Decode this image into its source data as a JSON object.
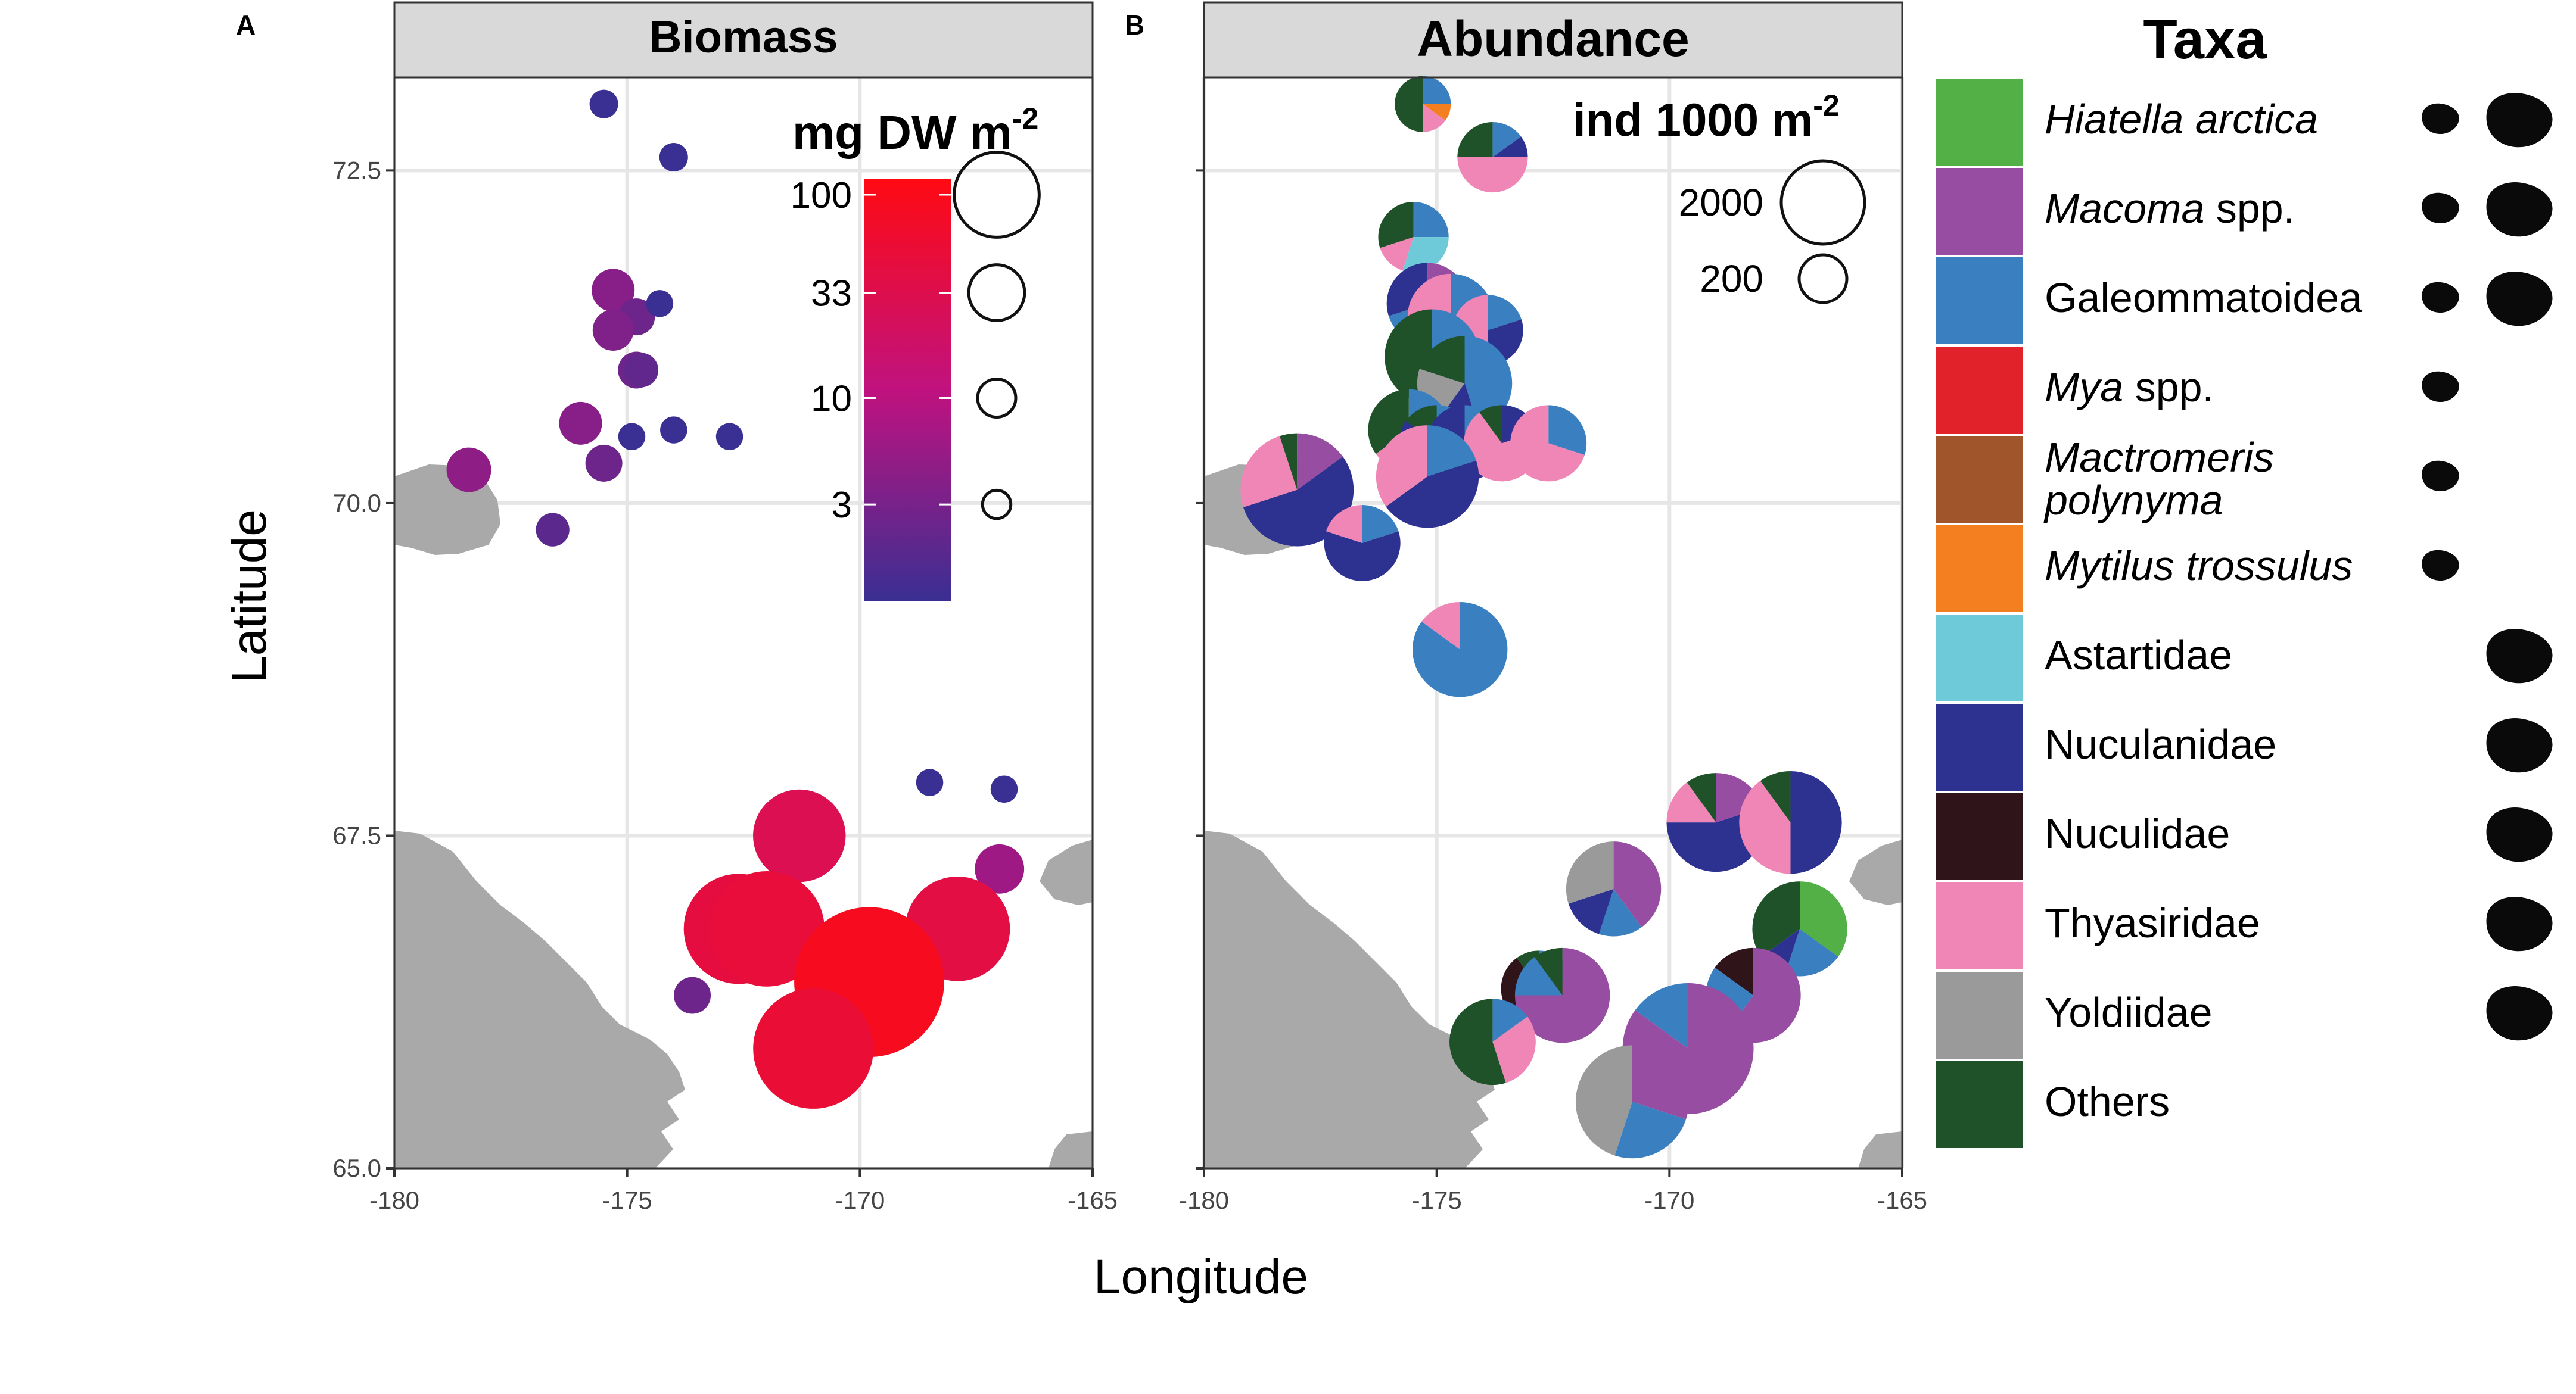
{
  "figure": {
    "axis_x_label": "Longitude",
    "axis_y_label": "Latitude",
    "x_ticks": [
      "-180",
      "-175",
      "-170",
      "-165"
    ],
    "y_ticks": [
      "65.0",
      "67.5",
      "70.0",
      "72.5"
    ]
  },
  "colors": {
    "land": "#a9a9a9",
    "grid": "#e6e6e6",
    "strip": "#d9d9d9",
    "gradient_low": "#3a2f93",
    "gradient_mid": "#c0127f",
    "gradient_high": "#ff0a12"
  },
  "chart_data": [
    {
      "type": "scatter",
      "panel_letter": "A",
      "title": "Biomass",
      "xlabel": "Longitude",
      "ylabel": "Latitude",
      "xlim": [
        -180,
        -165
      ],
      "ylim": [
        65.0,
        73.2
      ],
      "x_ticks": [
        -180,
        -175,
        -170,
        -165
      ],
      "y_ticks": [
        65.0,
        67.5,
        70.0,
        72.5
      ],
      "legend_title": "mg DW m",
      "legend_title_sup": "-2",
      "color_scale_labels": [
        "100",
        "33",
        "10",
        "3"
      ],
      "color_scale_values": [
        100,
        33,
        10,
        3
      ],
      "size_legend_values": [
        100,
        33,
        10,
        3
      ],
      "points": [
        {
          "lon": -175.5,
          "lat": 73.0,
          "biomass": 1.0
        },
        {
          "lon": -174.0,
          "lat": 72.6,
          "biomass": 1.0
        },
        {
          "lon": -175.3,
          "lat": 71.6,
          "biomass": 4.0
        },
        {
          "lon": -174.8,
          "lat": 71.4,
          "biomass": 2.5
        },
        {
          "lon": -174.3,
          "lat": 71.5,
          "biomass": 0.8
        },
        {
          "lon": -175.3,
          "lat": 71.3,
          "biomass": 3.5
        },
        {
          "lon": -174.8,
          "lat": 71.0,
          "biomass": 2.5
        },
        {
          "lon": -174.7,
          "lat": 71.0,
          "biomass": 2.0
        },
        {
          "lon": -176.0,
          "lat": 70.6,
          "biomass": 4.0
        },
        {
          "lon": -175.5,
          "lat": 70.3,
          "biomass": 2.5
        },
        {
          "lon": -174.9,
          "lat": 70.5,
          "biomass": 0.8
        },
        {
          "lon": -174.0,
          "lat": 70.55,
          "biomass": 0.8
        },
        {
          "lon": -172.8,
          "lat": 70.5,
          "biomass": 0.8
        },
        {
          "lon": -178.4,
          "lat": 70.25,
          "biomass": 4.5
        },
        {
          "lon": -176.6,
          "lat": 69.8,
          "biomass": 1.8
        },
        {
          "lon": -168.5,
          "lat": 67.9,
          "biomass": 0.8
        },
        {
          "lon": -166.9,
          "lat": 67.85,
          "biomass": 0.8
        },
        {
          "lon": -171.3,
          "lat": 67.5,
          "biomass": 30.0
        },
        {
          "lon": -167.0,
          "lat": 67.25,
          "biomass": 6.0
        },
        {
          "lon": -172.6,
          "lat": 66.8,
          "biomass": 45.0
        },
        {
          "lon": -172.0,
          "lat": 66.8,
          "biomass": 50.0
        },
        {
          "lon": -167.9,
          "lat": 66.8,
          "biomass": 40.0
        },
        {
          "lon": -169.8,
          "lat": 66.4,
          "biomass": 90.0
        },
        {
          "lon": -173.6,
          "lat": 66.3,
          "biomass": 2.5
        },
        {
          "lon": -171.0,
          "lat": 65.9,
          "biomass": 55.0
        }
      ]
    },
    {
      "type": "pie",
      "panel_letter": "B",
      "title": "Abundance",
      "xlabel": "Longitude",
      "ylabel": "Latitude",
      "xlim": [
        -180,
        -165
      ],
      "ylim": [
        65.0,
        73.2
      ],
      "x_ticks": [
        -180,
        -175,
        -170,
        -165
      ],
      "y_ticks": [
        65.0,
        67.5,
        70.0,
        72.5
      ],
      "legend_title": "ind 1000 m",
      "legend_title_sup": "-2",
      "size_legend_values": [
        2000,
        200
      ],
      "size_legend_labels": [
        "2000",
        "200"
      ],
      "taxa_title": "Taxa",
      "taxa": [
        {
          "name": "Hiatella arctica",
          "color": "#52b046",
          "italic": true,
          "shell_small": true,
          "shell_large": true
        },
        {
          "name": "Macoma",
          "suffix": " spp.",
          "color": "#974ea2",
          "italic": true,
          "shell_small": true,
          "shell_large": true
        },
        {
          "name": "Galeommatoidea",
          "color": "#3a7fbf",
          "italic": false,
          "shell_small": true,
          "shell_large": true
        },
        {
          "name": "Mya",
          "suffix": " spp.",
          "color": "#e1222a",
          "italic": true,
          "shell_small": true,
          "shell_large": false
        },
        {
          "name": "Mactromeris",
          "name_line2": "polynyma",
          "color": "#a0552a",
          "italic": true,
          "shell_small": true,
          "shell_large": false
        },
        {
          "name": "Mytilus trossulus",
          "color": "#f47f20",
          "italic": true,
          "shell_small": true,
          "shell_large": false
        },
        {
          "name": "Astartidae",
          "color": "#6ec9d8",
          "italic": false,
          "shell_small": false,
          "shell_large": true
        },
        {
          "name": "Nuculanidae",
          "color": "#2d3190",
          "italic": false,
          "shell_small": false,
          "shell_large": true
        },
        {
          "name": "Nuculidae",
          "color": "#2f1419",
          "italic": false,
          "shell_small": false,
          "shell_large": true
        },
        {
          "name": "Thyasiridae",
          "color": "#ef86b6",
          "italic": false,
          "shell_small": false,
          "shell_large": true
        },
        {
          "name": "Yoldiidae",
          "color": "#9a9a9a",
          "italic": false,
          "shell_small": false,
          "shell_large": true
        },
        {
          "name": "Others",
          "color": "#1f5228",
          "italic": false,
          "shell_small": false,
          "shell_large": false
        }
      ],
      "stations": [
        {
          "lon": -175.3,
          "lat": 73.0,
          "abundance": 200,
          "fractions": {
            "Others": 0.5,
            "Galeommatoidea": 0.25,
            "Mytilus trossulus": 0.1,
            "Thyasiridae": 0.15
          }
        },
        {
          "lon": -173.8,
          "lat": 72.6,
          "abundance": 400,
          "fractions": {
            "Thyasiridae": 0.5,
            "Others": 0.25,
            "Galeommatoidea": 0.15,
            "Nuculanidae": 0.1
          }
        },
        {
          "lon": -175.5,
          "lat": 72.0,
          "abundance": 400,
          "fractions": {
            "Astartidae": 0.3,
            "Others": 0.3,
            "Galeommatoidea": 0.25,
            "Thyasiridae": 0.15
          }
        },
        {
          "lon": -175.2,
          "lat": 71.5,
          "abundance": 600,
          "fractions": {
            "Galeommatoidea": 0.5,
            "Nuculanidae": 0.3,
            "Macoma": 0.2
          }
        },
        {
          "lon": -174.7,
          "lat": 71.4,
          "abundance": 700,
          "fractions": {
            "Nuculanidae": 0.45,
            "Galeommatoidea": 0.3,
            "Thyasiridae": 0.25
          }
        },
        {
          "lon": -173.9,
          "lat": 71.3,
          "abundance": 400,
          "fractions": {
            "Thyasiridae": 0.5,
            "Nuculanidae": 0.3,
            "Galeommatoidea": 0.2
          }
        },
        {
          "lon": -175.1,
          "lat": 71.1,
          "abundance": 900,
          "fractions": {
            "Others": 0.45,
            "Galeommatoidea": 0.3,
            "Nuculanidae": 0.25
          }
        },
        {
          "lon": -174.4,
          "lat": 70.9,
          "abundance": 900,
          "fractions": {
            "Galeommatoidea": 0.45,
            "Yoldiidae": 0.2,
            "Others": 0.2,
            "Nuculanidae": 0.15
          }
        },
        {
          "lon": -175.6,
          "lat": 70.55,
          "abundance": 600,
          "fractions": {
            "Others": 0.35,
            "Galeommatoidea": 0.35,
            "Astartidae": 0.2,
            "Thyasiridae": 0.1
          }
        },
        {
          "lon": -175.0,
          "lat": 70.45,
          "abundance": 500,
          "fractions": {
            "Nuculanidae": 0.6,
            "Galeommatoidea": 0.25,
            "Others": 0.15
          }
        },
        {
          "lon": -174.4,
          "lat": 70.45,
          "abundance": 500,
          "fractions": {
            "Nuculanidae": 0.75,
            "Galeommatoidea": 0.25
          }
        },
        {
          "lon": -173.6,
          "lat": 70.45,
          "abundance": 500,
          "fractions": {
            "Thyasiridae": 0.7,
            "Nuculanidae": 0.2,
            "Others": 0.1
          }
        },
        {
          "lon": -172.6,
          "lat": 70.45,
          "abundance": 500,
          "fractions": {
            "Thyasiridae": 0.7,
            "Galeommatoidea": 0.3
          }
        },
        {
          "lon": -175.2,
          "lat": 70.2,
          "abundance": 1100,
          "fractions": {
            "Nuculanidae": 0.45,
            "Thyasiridae": 0.35,
            "Galeommatoidea": 0.2
          }
        },
        {
          "lon": -178.0,
          "lat": 70.1,
          "abundance": 1400,
          "fractions": {
            "Nuculanidae": 0.55,
            "Thyasiridae": 0.25,
            "Macoma": 0.15,
            "Others": 0.05
          }
        },
        {
          "lon": -176.6,
          "lat": 69.7,
          "abundance": 500,
          "fractions": {
            "Nuculanidae": 0.6,
            "Galeommatoidea": 0.2,
            "Thyasiridae": 0.2
          }
        },
        {
          "lon": -174.5,
          "lat": 68.9,
          "abundance": 900,
          "fractions": {
            "Galeommatoidea": 0.85,
            "Thyasiridae": 0.15
          }
        },
        {
          "lon": -169.0,
          "lat": 67.6,
          "abundance": 1000,
          "fractions": {
            "Nuculanidae": 0.55,
            "Macoma": 0.2,
            "Thyasiridae": 0.15,
            "Others": 0.1
          }
        },
        {
          "lon": -167.4,
          "lat": 67.6,
          "abundance": 1100,
          "fractions": {
            "Nuculanidae": 0.5,
            "Thyasiridae": 0.4,
            "Others": 0.1
          }
        },
        {
          "lon": -171.2,
          "lat": 67.1,
          "abundance": 900,
          "fractions": {
            "Macoma": 0.4,
            "Yoldiidae": 0.3,
            "Nuculanidae": 0.15,
            "Galeommatoidea": 0.15
          }
        },
        {
          "lon": -167.2,
          "lat": 66.8,
          "abundance": 900,
          "fractions": {
            "Hiatella arctica": 0.35,
            "Others": 0.35,
            "Galeommatoidea": 0.2,
            "Nuculanidae": 0.1
          }
        },
        {
          "lon": -172.8,
          "lat": 66.35,
          "abundance": 500,
          "fractions": {
            "Nuculidae": 0.4,
            "Mya": 0.3,
            "Galeommatoidea": 0.2,
            "Others": 0.1
          }
        },
        {
          "lon": -172.3,
          "lat": 66.3,
          "abundance": 900,
          "fractions": {
            "Macoma": 0.75,
            "Galeommatoidea": 0.15,
            "Others": 0.1
          }
        },
        {
          "lon": -168.2,
          "lat": 66.3,
          "abundance": 900,
          "fractions": {
            "Macoma": 0.6,
            "Galeommatoidea": 0.25,
            "Nuculidae": 0.15
          }
        },
        {
          "lon": -173.8,
          "lat": 65.95,
          "abundance": 700,
          "fractions": {
            "Others": 0.55,
            "Thyasiridae": 0.3,
            "Galeommatoidea": 0.15
          }
        },
        {
          "lon": -169.6,
          "lat": 65.9,
          "abundance": 2000,
          "fractions": {
            "Macoma": 0.85,
            "Galeommatoidea": 0.15
          }
        },
        {
          "lon": -170.8,
          "lat": 65.5,
          "abundance": 1400,
          "fractions": {
            "Yoldiidae": 0.45,
            "Macoma": 0.3,
            "Galeommatoidea": 0.25
          }
        }
      ]
    }
  ]
}
